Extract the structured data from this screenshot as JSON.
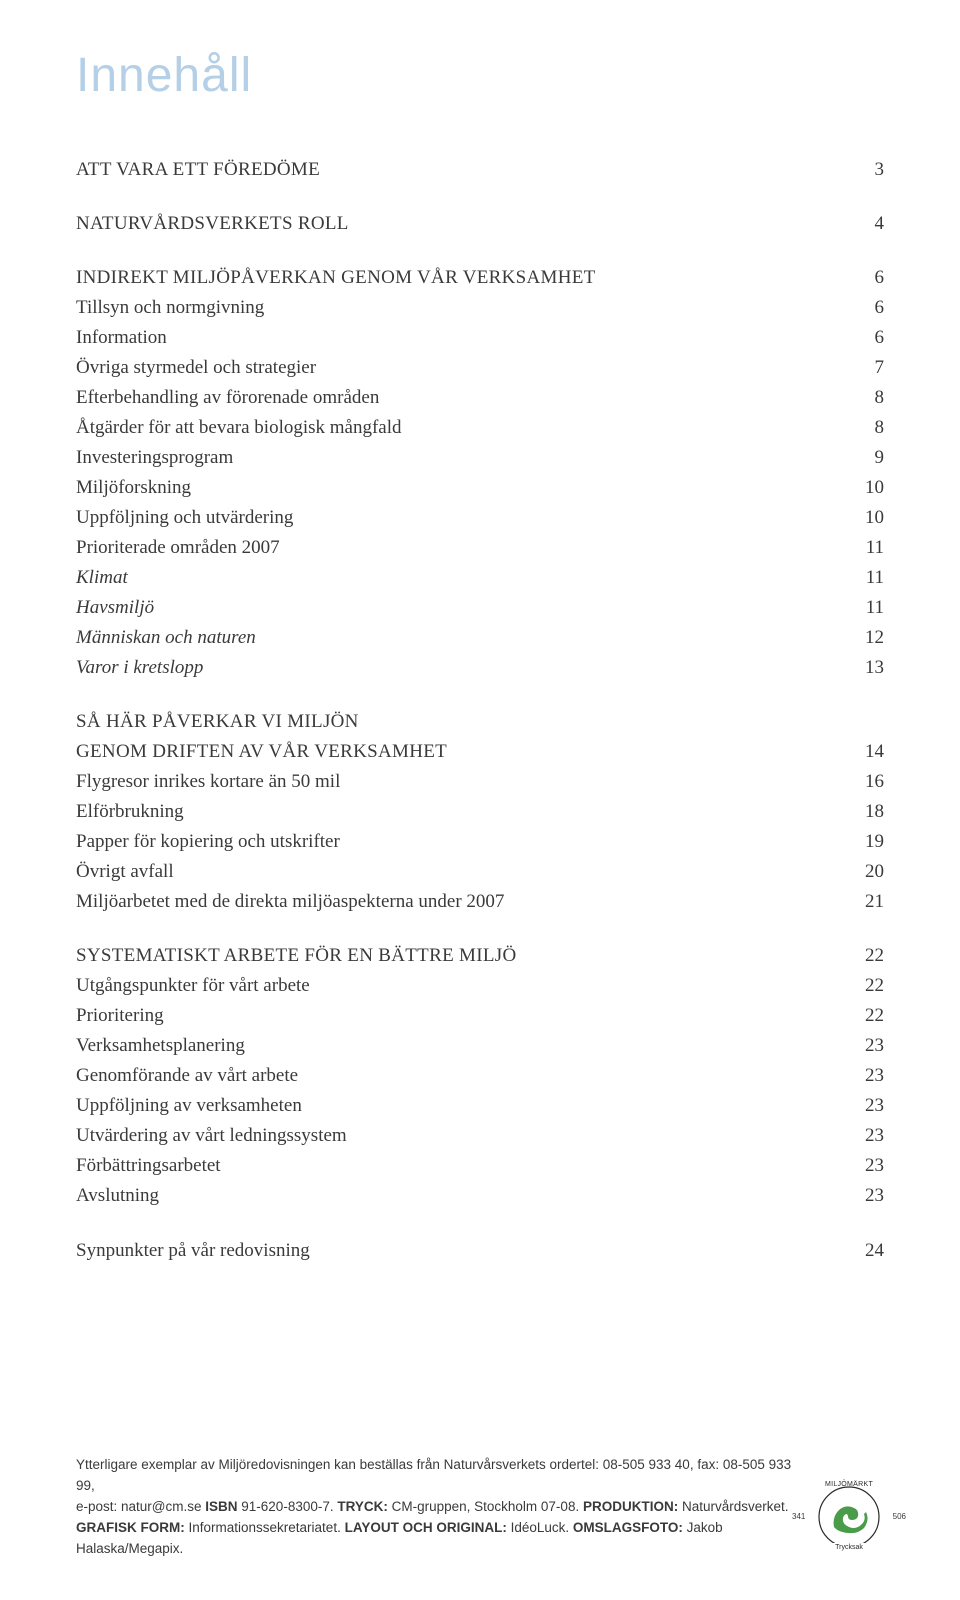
{
  "title": "Innehåll",
  "title_color": "#b5cfe6",
  "text_color": "#3a3a3a",
  "background_color": "#ffffff",
  "title_fontsize": 48,
  "body_fontsize": 19,
  "footer_fontsize": 13.5,
  "toc": [
    {
      "type": "heading",
      "label": "ATT VARA ETT FÖREDÖME",
      "page": "3"
    },
    {
      "type": "heading",
      "label": "NATURVÅRDSVERKETS ROLL",
      "page": "4"
    },
    {
      "type": "heading",
      "label": "INDIREKT MILJÖPÅVERKAN GENOM VÅR VERKSAMHET",
      "page": "6"
    },
    {
      "type": "entry",
      "label": "Tillsyn och normgivning",
      "page": "6"
    },
    {
      "type": "entry",
      "label": "Information",
      "page": "6"
    },
    {
      "type": "entry",
      "label": "Övriga styrmedel och strategier",
      "page": "7"
    },
    {
      "type": "entry",
      "label": "Efterbehandling av förorenade områden",
      "page": "8"
    },
    {
      "type": "entry",
      "label": "Åtgärder för att bevara biologisk mångfald",
      "page": "8"
    },
    {
      "type": "entry",
      "label": "Investeringsprogram",
      "page": "9"
    },
    {
      "type": "entry",
      "label": "Miljöforskning",
      "page": "10"
    },
    {
      "type": "entry",
      "label": "Uppföljning och utvärdering",
      "page": "10"
    },
    {
      "type": "entry",
      "label": "Prioriterade områden 2007",
      "page": "11"
    },
    {
      "type": "italic",
      "label": "Klimat",
      "page": "11"
    },
    {
      "type": "italic",
      "label": "Havsmiljö",
      "page": "11"
    },
    {
      "type": "italic",
      "label": "Människan och naturen",
      "page": "12"
    },
    {
      "type": "italic",
      "label": "Varor i kretslopp",
      "page": "13"
    },
    {
      "type": "heading2line",
      "line1": "SÅ HÄR PÅVERKAR VI MILJÖN",
      "line2": "GENOM DRIFTEN AV VÅR VERKSAMHET",
      "page": "14"
    },
    {
      "type": "entry",
      "label": "Flygresor inrikes kortare än 50 mil",
      "page": "16"
    },
    {
      "type": "entry",
      "label": "Elförbrukning",
      "page": "18"
    },
    {
      "type": "entry",
      "label": "Papper för kopiering och utskrifter",
      "page": "19"
    },
    {
      "type": "entry",
      "label": "Övrigt avfall",
      "page": "20"
    },
    {
      "type": "entry",
      "label": "Miljöarbetet med de direkta miljöaspekterna under 2007",
      "page": "21"
    },
    {
      "type": "heading",
      "label": "SYSTEMATISKT ARBETE FÖR EN BÄTTRE MILJÖ",
      "page": "22"
    },
    {
      "type": "entry",
      "label": "Utgångspunkter för vårt arbete",
      "page": "22"
    },
    {
      "type": "entry",
      "label": "Prioritering",
      "page": "22"
    },
    {
      "type": "entry",
      "label": "Verksamhetsplanering",
      "page": "23"
    },
    {
      "type": "entry",
      "label": "Genomförande av vårt arbete",
      "page": "23"
    },
    {
      "type": "entry",
      "label": "Uppföljning av verksamheten",
      "page": "23"
    },
    {
      "type": "entry",
      "label": "Utvärdering av vårt ledningssystem",
      "page": "23"
    },
    {
      "type": "entry",
      "label": "Förbättringsarbetet",
      "page": "23"
    },
    {
      "type": "entry",
      "label": "Avslutning",
      "page": "23"
    },
    {
      "type": "heading_plain",
      "label": "Synpunkter på vår redovisning",
      "page": "24"
    }
  ],
  "footer": {
    "line1_pre": "Ytterligare exemplar av Miljöredovisningen kan beställas från Naturvårsverkets ordertel: 08-505 933 40, fax: 08-505 933 99,",
    "line2_a": "e-post: natur@cm.se ",
    "line2_isbn_label": "ISBN",
    "line2_isbn": " 91-620-8300-7. ",
    "line2_tryck_label": "TRYCK: ",
    "line2_tryck": "CM-gruppen, Stockholm 07-08. ",
    "line2_prod_label": "PRODUKTION: ",
    "line2_prod": "Naturvårdsverket.",
    "line3_grafik_label": "GRAFISK FORM: ",
    "line3_grafik": "Informationssekretariatet. ",
    "line3_layout_label": "LAYOUT OCH ORIGINAL: ",
    "line3_layout": "IdéoLuck. ",
    "line3_omslag_label": "OMSLAGSFOTO: ",
    "line3_omslag": "Jakob Halaska/Megapix."
  },
  "eco_label": {
    "top_text": "MILJÖMÄRKT",
    "bottom_text": "Trycksak",
    "number_left": "341",
    "number_right": "506",
    "outer_color": "#2a2a2a",
    "inner_color": "#4a9b4a"
  }
}
